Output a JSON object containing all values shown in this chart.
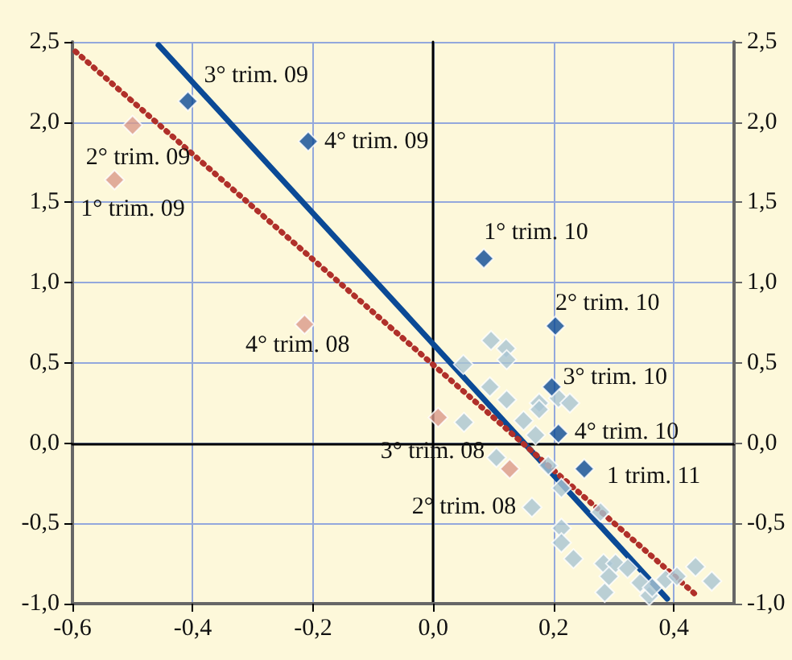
{
  "chart_data": {
    "type": "scatter",
    "marker": "diamond",
    "grid": true,
    "xlim": [
      -0.6,
      0.5
    ],
    "xticks": [
      {
        "value": -0.6,
        "label": "-0,6"
      },
      {
        "value": -0.4,
        "label": "-0,4"
      },
      {
        "value": -0.2,
        "label": "-0,2"
      },
      {
        "value": 0,
        "label": "0,0"
      },
      {
        "value": 0.2,
        "label": "0,2"
      },
      {
        "value": 0.4,
        "label": "0,4"
      }
    ],
    "ylim": [
      -1.0,
      2.5
    ],
    "yticks": [
      {
        "value": -1,
        "label": "-1,0"
      },
      {
        "value": -0.5,
        "label": "-0,5"
      },
      {
        "value": 0,
        "label": "0,0"
      },
      {
        "value": 0.5,
        "label": "0,5"
      },
      {
        "value": 1,
        "label": "1,0"
      },
      {
        "value": 1.5,
        "label": "1,5"
      },
      {
        "value": 2,
        "label": "2,0"
      },
      {
        "value": 2.5,
        "label": "2,5"
      }
    ],
    "y2lim": [
      -1.0,
      2.5
    ],
    "y2ticks": [
      {
        "value": -1,
        "label": "-1,0"
      },
      {
        "value": -0.5,
        "label": "-0,5"
      },
      {
        "value": 0,
        "label": "0,0"
      },
      {
        "value": 0.5,
        "label": "0,5"
      },
      {
        "value": 1,
        "label": "1,0"
      },
      {
        "value": 1.5,
        "label": "1,5"
      },
      {
        "value": 2,
        "label": "2,0"
      },
      {
        "value": 2.5,
        "label": "2,5"
      }
    ],
    "series": [
      {
        "color": "#a9c4d2",
        "x": [
          0.05,
          0.096,
          0.121,
          0.122,
          0.051,
          0.094,
          0.122,
          0.15,
          0.176,
          0.176,
          0.17,
          0.208,
          0.227,
          0.105,
          0.191,
          0.213,
          0.164,
          0.213,
          0.213,
          0.233,
          0.283,
          0.303,
          0.292,
          0.285,
          0.323,
          0.344,
          0.359,
          0.364,
          0.386,
          0.405,
          0.436,
          0.463,
          0.278
        ],
        "values": [
          0.49,
          0.64,
          0.59,
          0.52,
          0.13,
          0.35,
          0.27,
          0.14,
          0.25,
          0.21,
          0.05,
          0.28,
          0.25,
          -0.09,
          -0.14,
          -0.28,
          -0.4,
          -0.53,
          -0.62,
          -0.72,
          -0.75,
          -0.75,
          -0.83,
          -0.93,
          -0.78,
          -0.87,
          -0.95,
          -0.9,
          -0.85,
          -0.83,
          -0.77,
          -0.86,
          -0.43
        ]
      },
      {
        "color": "#d9998a",
        "x": [
          -0.53,
          -0.5,
          -0.214,
          0.008,
          0.127
        ],
        "values": [
          1.64,
          1.98,
          0.74,
          0.16,
          -0.16
        ]
      },
      {
        "color": "#0b4a96",
        "x": [
          -0.408,
          -0.208,
          0.084,
          0.203,
          0.197,
          0.208,
          0.251
        ],
        "values": [
          2.13,
          1.88,
          1.15,
          0.73,
          0.35,
          0.06,
          -0.16
        ]
      },
      {
        "type": "line",
        "color": "#0b4a96",
        "marker": "none",
        "line_style": "solid",
        "x": [
          -0.457,
          0.389
        ],
        "values": [
          2.48,
          -0.97
        ]
      },
      {
        "type": "line",
        "color": "#b0302a",
        "marker": "none",
        "line_style": "dotted",
        "x": [
          -0.595,
          0.435
        ],
        "values": [
          2.44,
          -0.94
        ]
      }
    ],
    "annotations": [
      {
        "text": "3° trim. 09",
        "x": -0.408,
        "y": 2.13
      },
      {
        "text": "4° trim. 09",
        "x": -0.208,
        "y": 1.88
      },
      {
        "text": "1° trim. 10",
        "x": 0.084,
        "y": 1.15
      },
      {
        "text": "2° trim. 10",
        "x": 0.203,
        "y": 0.73
      },
      {
        "text": "3° trim. 10",
        "x": 0.197,
        "y": 0.35
      },
      {
        "text": "4° trim. 10",
        "x": 0.208,
        "y": 0.06
      },
      {
        "text": "1 trim. 11",
        "x": 0.251,
        "y": -0.16
      },
      {
        "text": "1° trim. 09",
        "x": -0.53,
        "y": 1.64
      },
      {
        "text": "2° trim. 09",
        "x": -0.5,
        "y": 1.98
      },
      {
        "text": "4° trim. 08",
        "x": -0.214,
        "y": 0.74
      },
      {
        "text": "3° trim. 08",
        "x": 0.008,
        "y": 0.16
      },
      {
        "text": "2° trim. 08",
        "x": 0.127,
        "y": -0.16
      }
    ]
  }
}
